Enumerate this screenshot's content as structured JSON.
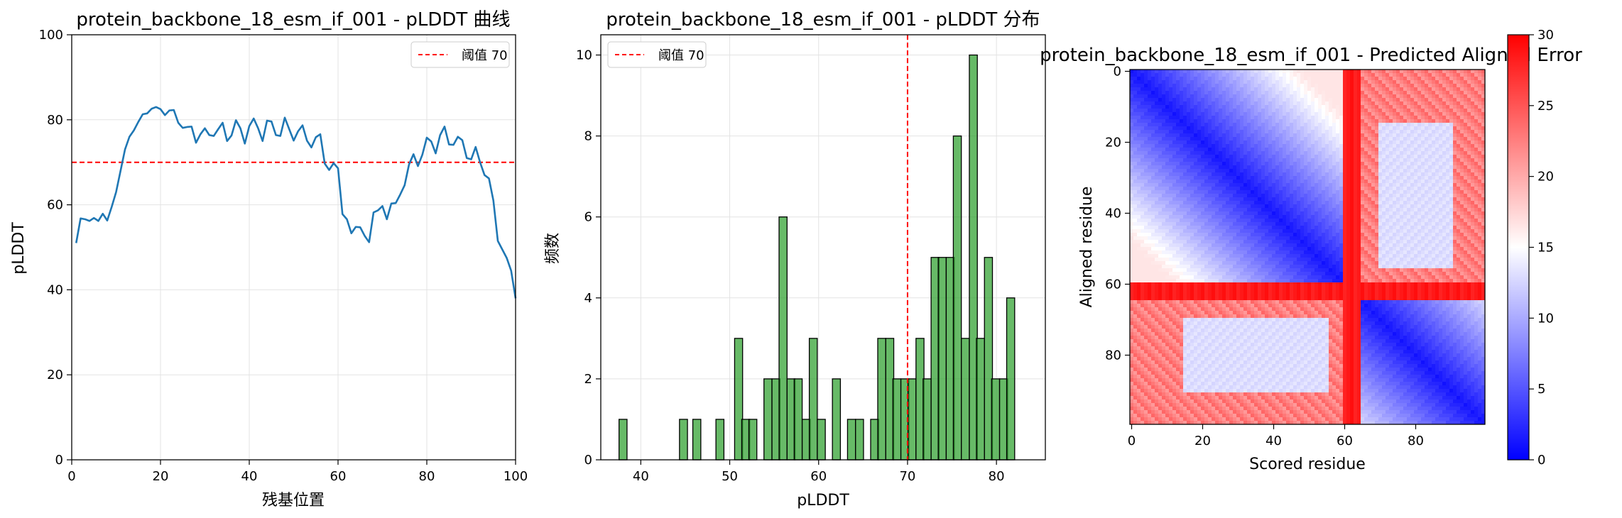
{
  "chart_data": [
    {
      "type": "line",
      "title": "protein_backbone_18_esm_if_001 - pLDDT 曲线",
      "xlabel": "残基位置",
      "ylabel": "pLDDT",
      "xlim": [
        0,
        100
      ],
      "ylim": [
        0,
        100
      ],
      "xticks": [
        0,
        20,
        40,
        60,
        80,
        100
      ],
      "yticks": [
        0,
        20,
        40,
        60,
        80,
        100
      ],
      "grid": true,
      "legend_position": "top-right",
      "threshold": {
        "value": 70,
        "label": "阈值 70",
        "color": "#ff0000"
      },
      "series": [
        {
          "color": "#1f77b4",
          "x": [
            1,
            2,
            3,
            4,
            5,
            6,
            7,
            8,
            9,
            10,
            11,
            12,
            13,
            14,
            15,
            16,
            17,
            18,
            19,
            20,
            21,
            22,
            23,
            24,
            25,
            26,
            27,
            28,
            29,
            30,
            31,
            32,
            33,
            34,
            35,
            36,
            37,
            38,
            39,
            40,
            41,
            42,
            43,
            44,
            45,
            46,
            47,
            48,
            49,
            50,
            51,
            52,
            53,
            54,
            55,
            56,
            57,
            58,
            59,
            60,
            61,
            62,
            63,
            64,
            65,
            66,
            67,
            68,
            69,
            70,
            71,
            72,
            73,
            74,
            75,
            76,
            77,
            78,
            79,
            80,
            81,
            82,
            83,
            84,
            85,
            86,
            87,
            88,
            89,
            90,
            91,
            92,
            93,
            94,
            95,
            96,
            97,
            98,
            99,
            100
          ],
          "y": [
            51,
            56.8,
            56.6,
            56.2,
            56.9,
            56.2,
            57.9,
            56.3,
            59.5,
            63,
            68,
            73,
            76,
            77.5,
            79.5,
            81.3,
            81.5,
            82.6,
            83,
            82.5,
            81.1,
            82.2,
            82.3,
            79.3,
            78.1,
            78.3,
            78.4,
            74.6,
            76.6,
            78,
            76.4,
            76.2,
            77.8,
            79.3,
            75,
            76.3,
            79.9,
            78,
            74.4,
            78.5,
            80.3,
            78,
            75,
            79.8,
            79.6,
            76.4,
            76.2,
            80.5,
            77.8,
            75.1,
            77.3,
            78.7,
            75.1,
            73.5,
            75.9,
            76.6,
            69.7,
            68.2,
            69.8,
            68.6,
            57.8,
            56.6,
            53.3,
            54.8,
            54.7,
            52.7,
            51.2,
            58.2,
            58.7,
            59.7,
            56.6,
            60.3,
            60.4,
            62.4,
            64.6,
            69.5,
            71.9,
            69.1,
            71.8,
            75.8,
            74.9,
            72.1,
            76.4,
            78.4,
            74.2,
            74.1,
            76,
            75.2,
            71,
            70.7,
            73.6,
            70,
            67,
            66.2,
            61,
            51.5,
            49.5,
            47.5,
            44.5,
            38
          ]
        }
      ]
    },
    {
      "type": "bar",
      "title": "protein_backbone_18_esm_if_001 - pLDDT 分布",
      "xlabel": "pLDDT",
      "ylabel": "频数",
      "xlim": [
        35.5,
        85.5
      ],
      "ylim": [
        0,
        10.5
      ],
      "xticks": [
        40,
        50,
        60,
        70,
        80
      ],
      "yticks": [
        0,
        2,
        4,
        6,
        8,
        10
      ],
      "grid": true,
      "legend_position": "top-left",
      "threshold": {
        "value": 70,
        "label": "阈值 70",
        "color": "#ff0000"
      },
      "bar_color": "#2ca02c",
      "bin_width": 0.9,
      "bins": [
        {
          "x": 38.0,
          "count": 1
        },
        {
          "x": 44.8,
          "count": 1
        },
        {
          "x": 46.3,
          "count": 1
        },
        {
          "x": 48.9,
          "count": 1
        },
        {
          "x": 51.0,
          "count": 3
        },
        {
          "x": 51.8,
          "count": 1
        },
        {
          "x": 52.6,
          "count": 1
        },
        {
          "x": 54.3,
          "count": 2
        },
        {
          "x": 55.2,
          "count": 2
        },
        {
          "x": 56.0,
          "count": 6
        },
        {
          "x": 56.9,
          "count": 2
        },
        {
          "x": 57.7,
          "count": 2
        },
        {
          "x": 58.6,
          "count": 1
        },
        {
          "x": 59.4,
          "count": 3
        },
        {
          "x": 60.3,
          "count": 1
        },
        {
          "x": 62.0,
          "count": 2
        },
        {
          "x": 63.7,
          "count": 1
        },
        {
          "x": 64.6,
          "count": 1
        },
        {
          "x": 66.3,
          "count": 1
        },
        {
          "x": 67.1,
          "count": 3
        },
        {
          "x": 68.0,
          "count": 3
        },
        {
          "x": 68.8,
          "count": 2
        },
        {
          "x": 69.7,
          "count": 2
        },
        {
          "x": 70.5,
          "count": 2
        },
        {
          "x": 71.4,
          "count": 3
        },
        {
          "x": 72.2,
          "count": 2
        },
        {
          "x": 73.1,
          "count": 5
        },
        {
          "x": 73.9,
          "count": 5
        },
        {
          "x": 74.8,
          "count": 5
        },
        {
          "x": 75.6,
          "count": 8
        },
        {
          "x": 76.5,
          "count": 3
        },
        {
          "x": 77.4,
          "count": 10
        },
        {
          "x": 78.2,
          "count": 3
        },
        {
          "x": 79.1,
          "count": 5
        },
        {
          "x": 79.9,
          "count": 2
        },
        {
          "x": 80.8,
          "count": 2
        },
        {
          "x": 81.6,
          "count": 4
        }
      ]
    },
    {
      "type": "heatmap",
      "title": "protein_backbone_18_esm_if_001 - Predicted Aligned Error",
      "xlabel": "Scored residue",
      "ylabel": "Aligned residue",
      "size": 100,
      "xticks": [
        0,
        20,
        40,
        60,
        80
      ],
      "yticks": [
        0,
        20,
        40,
        60,
        80
      ],
      "colorscale": "bwr",
      "vmin": 0,
      "vmax": 30,
      "colorbar_ticks": [
        0,
        5,
        10,
        15,
        20,
        25,
        30
      ],
      "domains": [
        [
          0,
          60
        ],
        [
          65,
          100
        ]
      ],
      "linker": [
        60,
        65
      ]
    }
  ]
}
